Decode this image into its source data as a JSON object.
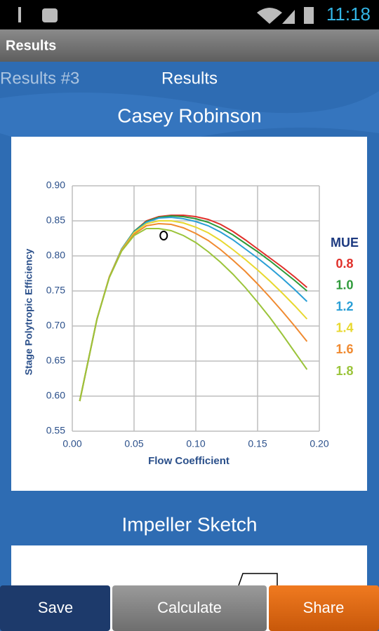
{
  "status_bar": {
    "time": "11:18"
  },
  "action_bar": {
    "title": "Results"
  },
  "tabs": [
    "Results #3",
    "Results"
  ],
  "section_title": "Casey Robinson",
  "chart_data": {
    "type": "line",
    "x_label": "Flow Coefficient",
    "y_label": "Stage Polytropic Efficiency",
    "legend_title": "MUE",
    "xlim": [
      0,
      0.2
    ],
    "xticks": [
      {
        "value": 0,
        "label": "0.00"
      },
      0.05,
      {
        "value": 0.1,
        "label": "0.10"
      },
      0.15,
      {
        "value": 0.2,
        "label": "0.20"
      }
    ],
    "ylim": [
      0.55,
      0.9
    ],
    "yticks": [
      0.55,
      {
        "value": 0.6,
        "label": "0.60"
      },
      0.65,
      {
        "value": 0.7,
        "label": "0.70"
      },
      0.75,
      {
        "value": 0.8,
        "label": "0.80"
      },
      0.85,
      {
        "value": 0.9,
        "label": "0.90"
      }
    ],
    "grid": true,
    "x": [
      0.006,
      0.02,
      0.03,
      0.04,
      0.05,
      0.06,
      0.07,
      0.08,
      0.09,
      0.1,
      0.11,
      0.12,
      0.13,
      0.14,
      0.15,
      0.16,
      0.17,
      0.18,
      0.19
    ],
    "series": [
      {
        "name": "0.8",
        "color": "#e0302a",
        "values": [
          0.593,
          0.71,
          0.77,
          0.81,
          0.835,
          0.85,
          0.856,
          0.858,
          0.858,
          0.856,
          0.852,
          0.845,
          0.835,
          0.823,
          0.81,
          0.797,
          0.784,
          0.77,
          0.755
        ]
      },
      {
        "name": "1.0",
        "color": "#2e9a3a",
        "values": [
          0.593,
          0.71,
          0.77,
          0.81,
          0.835,
          0.849,
          0.855,
          0.857,
          0.856,
          0.853,
          0.848,
          0.84,
          0.83,
          0.818,
          0.806,
          0.793,
          0.779,
          0.765,
          0.75
        ]
      },
      {
        "name": "1.2",
        "color": "#2a9fd6",
        "values": [
          0.593,
          0.71,
          0.77,
          0.81,
          0.834,
          0.848,
          0.854,
          0.855,
          0.853,
          0.849,
          0.843,
          0.834,
          0.823,
          0.81,
          0.797,
          0.783,
          0.768,
          0.752,
          0.735
        ]
      },
      {
        "name": "1.4",
        "color": "#e8d830",
        "values": [
          0.593,
          0.71,
          0.77,
          0.809,
          0.833,
          0.846,
          0.85,
          0.85,
          0.847,
          0.841,
          0.833,
          0.822,
          0.809,
          0.795,
          0.78,
          0.764,
          0.747,
          0.729,
          0.71
        ]
      },
      {
        "name": "1.6",
        "color": "#f08a30",
        "values": [
          0.593,
          0.71,
          0.77,
          0.808,
          0.831,
          0.843,
          0.846,
          0.845,
          0.84,
          0.832,
          0.822,
          0.809,
          0.794,
          0.778,
          0.76,
          0.741,
          0.721,
          0.7,
          0.678
        ]
      },
      {
        "name": "1.8",
        "color": "#9bc43a",
        "values": [
          0.593,
          0.71,
          0.769,
          0.807,
          0.829,
          0.839,
          0.839,
          0.836,
          0.829,
          0.819,
          0.806,
          0.791,
          0.774,
          0.755,
          0.734,
          0.712,
          0.688,
          0.663,
          0.638
        ]
      }
    ],
    "marker": {
      "x": 0.074,
      "y": 0.829
    }
  },
  "impeller_title": "Impeller Sketch",
  "buttons": [
    "Save",
    "Calculate",
    "Share"
  ]
}
